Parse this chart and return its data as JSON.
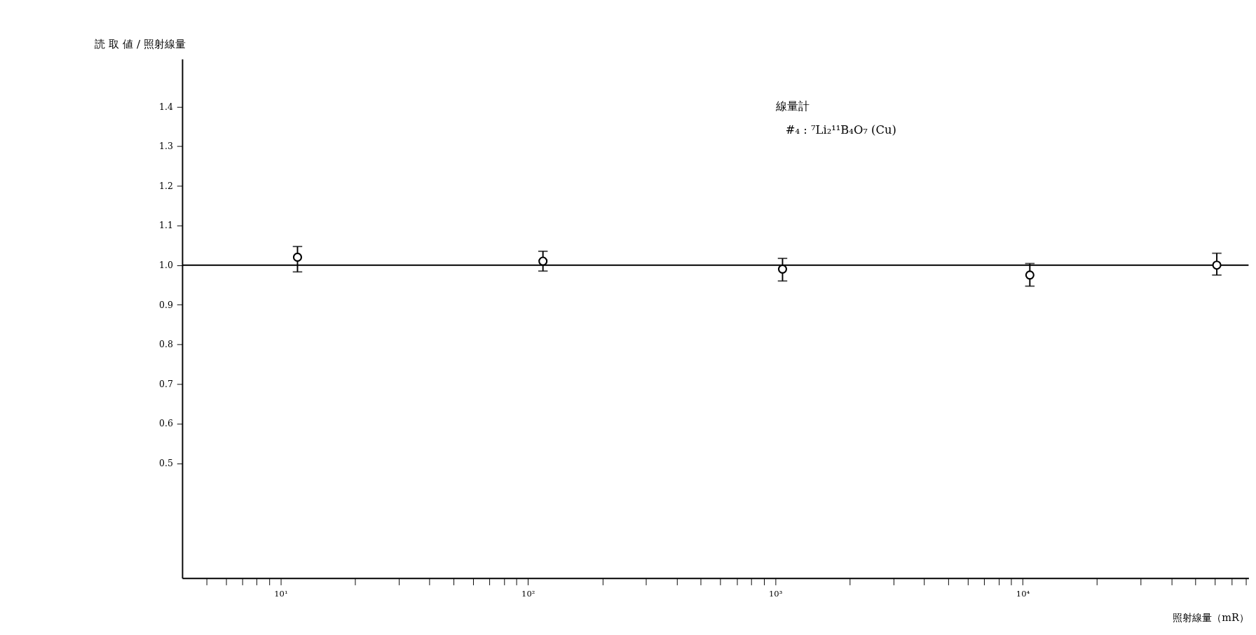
{
  "chart_data": {
    "type": "scatter",
    "ylabel": "読 取 値 / 照射線量",
    "xlabel": "照射線量（mR）",
    "annotations": [
      "線量計",
      "#₄ : ⁷Li₂¹¹B₄O₇ (Cu)"
    ],
    "x": [
      11.7,
      115,
      1070,
      10700,
      61000
    ],
    "series": [
      {
        "color": "#000000",
        "values": [
          1.02,
          1.01,
          0.99,
          0.975,
          1.0
        ],
        "errors": [
          [
            0.983,
            1.047
          ],
          [
            0.985,
            1.035
          ],
          [
            0.96,
            1.017
          ],
          [
            0.947,
            1.004
          ],
          [
            0.975,
            1.03
          ]
        ]
      }
    ],
    "marker": "circle",
    "log": "x",
    "grid": false,
    "xlim": [
      4,
      82000
    ],
    "ylim": [
      0.21,
      1.52
    ],
    "xticks": [
      {
        "value": 5,
        "label": null
      },
      {
        "value": 6,
        "label": null
      },
      {
        "value": 7,
        "label": null
      },
      {
        "value": 8,
        "label": null
      },
      {
        "value": 9,
        "label": null
      },
      {
        "value": 10,
        "label": "10¹"
      },
      {
        "value": 20,
        "label": null
      },
      {
        "value": 30,
        "label": null
      },
      {
        "value": 40,
        "label": null
      },
      {
        "value": 50,
        "label": null
      },
      {
        "value": 60,
        "label": null
      },
      {
        "value": 70,
        "label": null
      },
      {
        "value": 80,
        "label": null
      },
      {
        "value": 90,
        "label": null
      },
      {
        "value": 100,
        "label": "10²"
      },
      {
        "value": 200,
        "label": null
      },
      {
        "value": 300,
        "label": null
      },
      {
        "value": 400,
        "label": null
      },
      {
        "value": 500,
        "label": null
      },
      {
        "value": 600,
        "label": null
      },
      {
        "value": 700,
        "label": null
      },
      {
        "value": 800,
        "label": null
      },
      {
        "value": 900,
        "label": null
      },
      {
        "value": 1000,
        "label": "10³"
      },
      {
        "value": 2000,
        "label": null
      },
      {
        "value": 3000,
        "label": null
      },
      {
        "value": 4000,
        "label": null
      },
      {
        "value": 5000,
        "label": null
      },
      {
        "value": 6000,
        "label": null
      },
      {
        "value": 7000,
        "label": null
      },
      {
        "value": 8000,
        "label": null
      },
      {
        "value": 9000,
        "label": null
      },
      {
        "value": 10000,
        "label": "10⁴"
      },
      {
        "value": 20000,
        "label": null
      },
      {
        "value": 30000,
        "label": null
      },
      {
        "value": 40000,
        "label": null
      },
      {
        "value": 50000,
        "label": null
      },
      {
        "value": 60000,
        "label": null
      },
      {
        "value": 70000,
        "label": null
      },
      {
        "value": 80000,
        "label": null
      }
    ],
    "yticks": [
      {
        "value": 0.5,
        "label": "0.5"
      },
      {
        "value": 0.6,
        "label": "0.6"
      },
      {
        "value": 0.7,
        "label": "0.7"
      },
      {
        "value": 0.8,
        "label": "0.8"
      },
      {
        "value": 0.9,
        "label": "0.9"
      },
      {
        "value": 1.0,
        "label": "1.0"
      },
      {
        "value": 1.1,
        "label": "1.1"
      },
      {
        "value": 1.2,
        "label": "1.2"
      },
      {
        "value": 1.3,
        "label": "1.3"
      },
      {
        "value": 1.4,
        "label": "1.4"
      }
    ],
    "ref_lines": [
      {
        "axis": "y",
        "value": 1.0,
        "color": "#000000"
      }
    ]
  }
}
